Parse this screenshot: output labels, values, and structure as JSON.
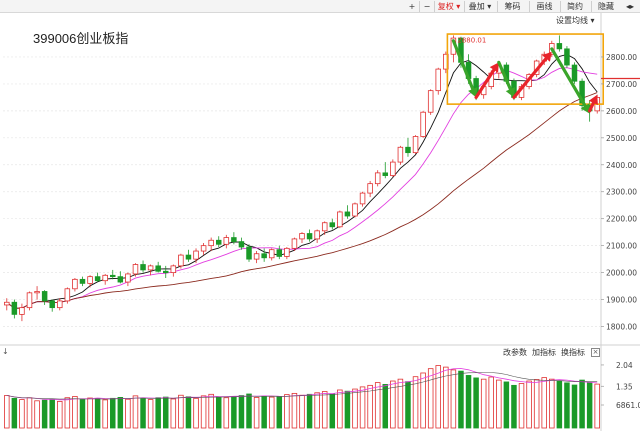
{
  "toolbar": {
    "items": [
      {
        "label": "+"
      },
      {
        "label": "−"
      },
      {
        "label": "复权 ▾"
      },
      {
        "label": "叠加 ▾"
      },
      {
        "label": "筹码"
      },
      {
        "label": "画线"
      },
      {
        "label": "简约"
      },
      {
        "label": "隐藏"
      },
      {
        "label": "◂▸"
      }
    ]
  },
  "chart": {
    "title": "399006创业板指",
    "ma_settings": "设置均线 ▾",
    "high_annotation": "2880.01",
    "price_axis": [
      "2800.00",
      "2700.00",
      "2600.00",
      "2500.00",
      "2400.00",
      "2300.00",
      "2200.00",
      "2100.00",
      "2000.00",
      "1900.00",
      "1800.00"
    ],
    "volume_axis": [
      "2.04",
      "1.35",
      "6861.00"
    ],
    "sub_panel": {
      "collapse": "↓",
      "buttons": [
        "改参数",
        "加指标",
        "换指标"
      ],
      "close": "×"
    }
  },
  "colors": {
    "up": "#e03030",
    "down": "#1a9a28",
    "ma_short": "#111111",
    "ma_mid": "#e23ee0",
    "ma_long": "#8b2a1f",
    "box": "#f2a50a",
    "arrow_up": "#e8232b",
    "arrow_down": "#3aa52a"
  },
  "chart_data": {
    "type": "candlestick",
    "ylim": [
      1750,
      2900
    ],
    "candles": [
      [
        1880,
        1905,
        1860,
        1890
      ],
      [
        1890,
        1900,
        1830,
        1845
      ],
      [
        1845,
        1885,
        1820,
        1870
      ],
      [
        1870,
        1930,
        1860,
        1925
      ],
      [
        1925,
        1950,
        1900,
        1930
      ],
      [
        1930,
        1935,
        1880,
        1895
      ],
      [
        1895,
        1900,
        1855,
        1870
      ],
      [
        1870,
        1905,
        1860,
        1895
      ],
      [
        1895,
        1945,
        1885,
        1940
      ],
      [
        1940,
        1980,
        1930,
        1975
      ],
      [
        1975,
        1985,
        1950,
        1960
      ],
      [
        1960,
        1990,
        1945,
        1985
      ],
      [
        1985,
        2000,
        1965,
        1970
      ],
      [
        1970,
        1995,
        1955,
        1990
      ],
      [
        1990,
        2010,
        1975,
        1985
      ],
      [
        1985,
        2005,
        1960,
        1965
      ],
      [
        1965,
        2000,
        1950,
        1995
      ],
      [
        1995,
        2035,
        1985,
        2030
      ],
      [
        2030,
        2045,
        2000,
        2010
      ],
      [
        2010,
        2030,
        1990,
        2025
      ],
      [
        2025,
        2040,
        2000,
        2005
      ],
      [
        2005,
        2025,
        1980,
        2000
      ],
      [
        2000,
        2030,
        1985,
        2025
      ],
      [
        2025,
        2070,
        2015,
        2065
      ],
      [
        2065,
        2085,
        2040,
        2050
      ],
      [
        2050,
        2090,
        2035,
        2080
      ],
      [
        2080,
        2110,
        2065,
        2100
      ],
      [
        2100,
        2130,
        2080,
        2120
      ],
      [
        2120,
        2135,
        2095,
        2105
      ],
      [
        2105,
        2140,
        2090,
        2130
      ],
      [
        2130,
        2150,
        2105,
        2115
      ],
      [
        2115,
        2130,
        2085,
        2095
      ],
      [
        2095,
        2105,
        2040,
        2050
      ],
      [
        2050,
        2080,
        2035,
        2070
      ],
      [
        2070,
        2090,
        2040,
        2055
      ],
      [
        2055,
        2090,
        2045,
        2085
      ],
      [
        2085,
        2100,
        2050,
        2060
      ],
      [
        2060,
        2095,
        2050,
        2090
      ],
      [
        2090,
        2130,
        2080,
        2125
      ],
      [
        2125,
        2150,
        2110,
        2145
      ],
      [
        2145,
        2160,
        2115,
        2125
      ],
      [
        2125,
        2160,
        2110,
        2155
      ],
      [
        2155,
        2190,
        2140,
        2185
      ],
      [
        2185,
        2200,
        2160,
        2170
      ],
      [
        2170,
        2230,
        2165,
        2225
      ],
      [
        2225,
        2250,
        2200,
        2210
      ],
      [
        2210,
        2260,
        2205,
        2255
      ],
      [
        2255,
        2300,
        2245,
        2295
      ],
      [
        2295,
        2340,
        2280,
        2330
      ],
      [
        2330,
        2380,
        2320,
        2370
      ],
      [
        2370,
        2410,
        2350,
        2360
      ],
      [
        2360,
        2420,
        2355,
        2410
      ],
      [
        2410,
        2470,
        2400,
        2465
      ],
      [
        2465,
        2500,
        2430,
        2445
      ],
      [
        2445,
        2510,
        2440,
        2505
      ],
      [
        2505,
        2600,
        2500,
        2595
      ],
      [
        2595,
        2680,
        2585,
        2675
      ],
      [
        2675,
        2760,
        2660,
        2755
      ],
      [
        2755,
        2820,
        2740,
        2810
      ],
      [
        2810,
        2880,
        2780,
        2870
      ],
      [
        2870,
        2875,
        2760,
        2780
      ],
      [
        2780,
        2810,
        2700,
        2720
      ],
      [
        2720,
        2730,
        2640,
        2660
      ],
      [
        2660,
        2700,
        2645,
        2690
      ],
      [
        2690,
        2750,
        2680,
        2740
      ],
      [
        2740,
        2780,
        2720,
        2770
      ],
      [
        2770,
        2780,
        2700,
        2710
      ],
      [
        2710,
        2720,
        2640,
        2650
      ],
      [
        2650,
        2700,
        2640,
        2690
      ],
      [
        2690,
        2740,
        2680,
        2735
      ],
      [
        2735,
        2790,
        2725,
        2785
      ],
      [
        2785,
        2820,
        2770,
        2810
      ],
      [
        2810,
        2860,
        2800,
        2850
      ],
      [
        2850,
        2880,
        2820,
        2830
      ],
      [
        2830,
        2840,
        2760,
        2770
      ],
      [
        2770,
        2780,
        2700,
        2710
      ],
      [
        2710,
        2720,
        2600,
        2620
      ],
      [
        2620,
        2640,
        2560,
        2600
      ],
      [
        2600,
        2660,
        2590,
        2650
      ]
    ],
    "volumes": [
      1.05,
      0.96,
      0.92,
      0.98,
      0.88,
      0.9,
      0.94,
      0.86,
      0.98,
      1.02,
      0.93,
      0.97,
      0.95,
      0.91,
      0.96,
      0.99,
      0.93,
      1.04,
      0.97,
      0.92,
      0.98,
      1.0,
      0.94,
      1.06,
      1.01,
      0.96,
      1.04,
      1.09,
      1.0,
      0.98,
      1.02,
      1.05,
      1.1,
      0.99,
      1.03,
      1.0,
      1.01,
      1.08,
      1.12,
      1.06,
      1.09,
      1.14,
      1.18,
      1.1,
      1.23,
      1.19,
      1.26,
      1.33,
      1.38,
      1.47,
      1.41,
      1.52,
      1.58,
      1.5,
      1.66,
      1.78,
      1.92,
      2.02,
      1.97,
      1.88,
      1.84,
      1.7,
      1.62,
      1.58,
      1.65,
      1.55,
      1.49,
      1.38,
      1.44,
      1.52,
      1.57,
      1.63,
      1.58,
      1.51,
      1.46,
      1.39,
      1.55,
      1.47,
      1.42
    ]
  }
}
